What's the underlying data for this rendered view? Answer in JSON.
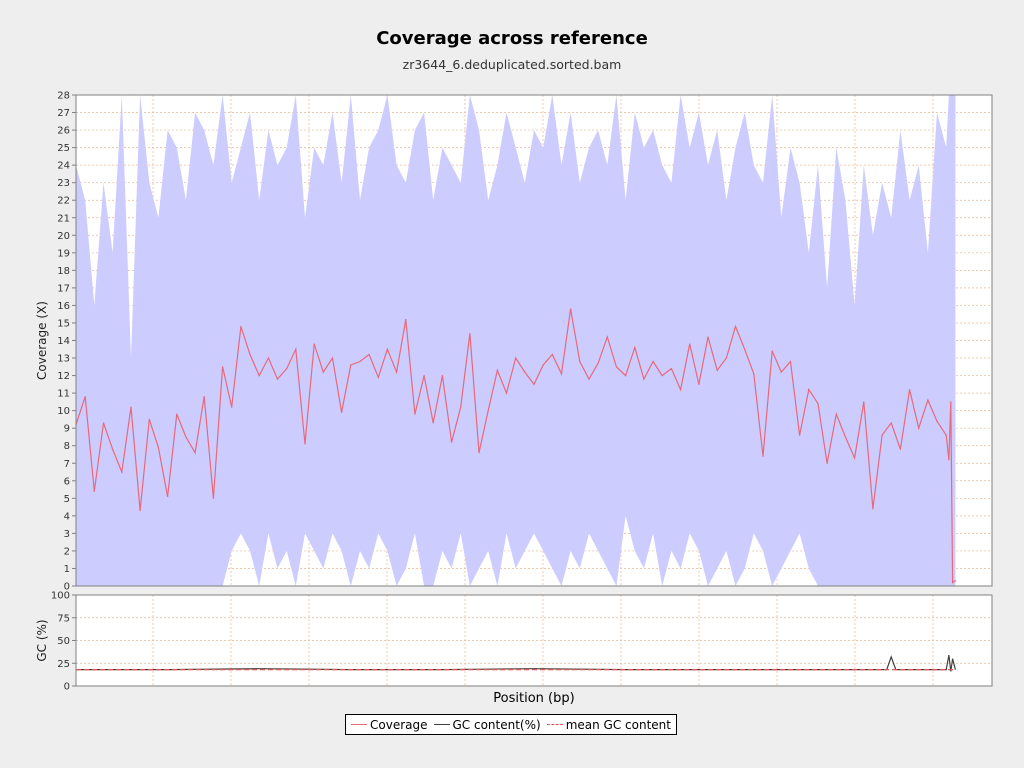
{
  "chart_data": {
    "title": "Coverage across reference",
    "subtitle": "zr3644_6.deduplicated.sorted.bam",
    "xlabel": "Position (bp)",
    "colors": {
      "coverage": "#e8697a",
      "band": "#ccccff",
      "gc": "#404040",
      "mean_gc": "#e05555",
      "grid": "#e8b890"
    },
    "legend": [
      {
        "label": "Coverage",
        "color": "#e8697a",
        "style": "solid"
      },
      {
        "label": "GC content(%)",
        "color": "#404040",
        "style": "solid"
      },
      {
        "label": "mean GC content",
        "color": "#e05555",
        "style": "dashed"
      }
    ],
    "legend_position": "bottom-center",
    "grid": true,
    "panels": [
      {
        "name": "coverage",
        "type": "line",
        "ylabel": "Coverage (X)",
        "ylim": [
          0,
          28
        ],
        "yticks": [
          "0",
          "1",
          "2",
          "3",
          "4",
          "5",
          "6",
          "7",
          "8",
          "9",
          "10",
          "11",
          "12",
          "13",
          "14",
          "15",
          "16",
          "17",
          "18",
          "19",
          "20",
          "21",
          "22",
          "23",
          "24",
          "25",
          "26",
          "27",
          "28"
        ],
        "xlim": [
          0,
          100
        ],
        "series": [
          {
            "name": "Coverage",
            "x": [
              0,
              1,
              2,
              3,
              4,
              5,
              6,
              7,
              8,
              9,
              10,
              11,
              12,
              13,
              14,
              15,
              16,
              17,
              18,
              19,
              20,
              21,
              22,
              23,
              24,
              25,
              26,
              27,
              28,
              29,
              30,
              31,
              32,
              33,
              34,
              35,
              36,
              37,
              38,
              39,
              40,
              41,
              42,
              43,
              44,
              45,
              46,
              47,
              48,
              49,
              50,
              51,
              52,
              53,
              54,
              55,
              56,
              57,
              58,
              59,
              60,
              61,
              62,
              63,
              64,
              65,
              66,
              67,
              68,
              69,
              70,
              71,
              72,
              73,
              74,
              75,
              76,
              77,
              78,
              79,
              80,
              81,
              82,
              83,
              84,
              85,
              86,
              87,
              88,
              89,
              90,
              91,
              92,
              93,
              94,
              95,
              95.3,
              95.5,
              95.7,
              96
            ],
            "y": [
              9.2,
              10.8,
              5.4,
              9.3,
              7.8,
              6.5,
              10.2,
              4.3,
              9.5,
              7.9,
              5.1,
              9.8,
              8.5,
              7.6,
              10.8,
              5.0,
              12.5,
              10.2,
              14.8,
              13.2,
              12.0,
              13.0,
              11.8,
              12.4,
              13.5,
              8.1,
              13.8,
              12.2,
              13.0,
              9.9,
              12.6,
              12.8,
              13.2,
              11.9,
              13.5,
              12.2,
              15.2,
              9.8,
              12.0,
              9.3,
              12.0,
              8.2,
              10.2,
              14.4,
              7.6,
              10.0,
              12.3,
              11.0,
              13.0,
              12.2,
              11.5,
              12.6,
              13.2,
              12.1,
              15.8,
              12.8,
              11.8,
              12.7,
              14.2,
              12.5,
              12.0,
              13.6,
              11.8,
              12.8,
              12.0,
              12.4,
              11.2,
              13.8,
              11.5,
              14.2,
              12.3,
              13.0,
              14.8,
              13.5,
              12.1,
              7.4,
              13.4,
              12.2,
              12.8,
              8.6,
              11.2,
              10.4,
              7.0,
              9.8,
              8.5,
              7.3,
              10.5,
              4.4,
              8.6,
              9.3,
              7.8,
              11.2,
              9.0,
              10.6,
              9.4,
              8.6,
              7.2,
              10.5,
              0.2,
              0.3
            ]
          }
        ],
        "band": {
          "name": "coverage spread",
          "upper": [
            24,
            22,
            16,
            23,
            19,
            28,
            13,
            28,
            23,
            21,
            26,
            25,
            22,
            27,
            26,
            24,
            28,
            23,
            25,
            27,
            22,
            26,
            24,
            25,
            28,
            21,
            25,
            24,
            27,
            23,
            28,
            22,
            25,
            26,
            28,
            24,
            23,
            26,
            27,
            22,
            25,
            24,
            23,
            28,
            26,
            22,
            24,
            27,
            25,
            23,
            26,
            25,
            28,
            24,
            27,
            23,
            25,
            26,
            24,
            28,
            22,
            27,
            25,
            26,
            24,
            23,
            28,
            25,
            27,
            24,
            26,
            22,
            25,
            27,
            24,
            23,
            28,
            21,
            25,
            23,
            19,
            24,
            17,
            25,
            22,
            16,
            24,
            20,
            23,
            21,
            26,
            22,
            24,
            19,
            27,
            25,
            28,
            28,
            28,
            28
          ],
          "lower": [
            0,
            0,
            0,
            0,
            0,
            0,
            0,
            0,
            0,
            0,
            0,
            0,
            0,
            0,
            0,
            0,
            0,
            2,
            3,
            2,
            0,
            3,
            1,
            2,
            0,
            3,
            2,
            1,
            3,
            2,
            0,
            2,
            1,
            3,
            2,
            0,
            1,
            3,
            0,
            0,
            2,
            1,
            3,
            0,
            1,
            2,
            0,
            3,
            1,
            2,
            3,
            2,
            1,
            0,
            2,
            1,
            3,
            2,
            1,
            0,
            4,
            2,
            1,
            3,
            0,
            2,
            1,
            3,
            2,
            0,
            1,
            2,
            0,
            1,
            3,
            2,
            0,
            1,
            2,
            3,
            1,
            0,
            0,
            0,
            0,
            0,
            0,
            0,
            0,
            0,
            0,
            0,
            0,
            0,
            0,
            0,
            0,
            0,
            0,
            0
          ]
        }
      },
      {
        "name": "gc",
        "type": "line",
        "ylabel": "GC (%)",
        "ylim": [
          0,
          100
        ],
        "yticks": [
          "0",
          "25",
          "50",
          "75",
          "100"
        ],
        "xlim": [
          0,
          100
        ],
        "series": [
          {
            "name": "GC content(%)",
            "x": [
              0,
              10,
              20,
              30,
              40,
              50,
              60,
              70,
              80,
              88.5,
              89,
              89.5,
              90,
              95,
              95.3,
              95.5,
              95.7,
              96
            ],
            "y": [
              18,
              18,
              19,
              18,
              18,
              19,
              18,
              18,
              18,
              18,
              32,
              18,
              18,
              18,
              34,
              16,
              30,
              18
            ]
          },
          {
            "name": "mean GC content",
            "x": [
              0,
              96
            ],
            "y": [
              18,
              18
            ]
          }
        ]
      }
    ]
  }
}
